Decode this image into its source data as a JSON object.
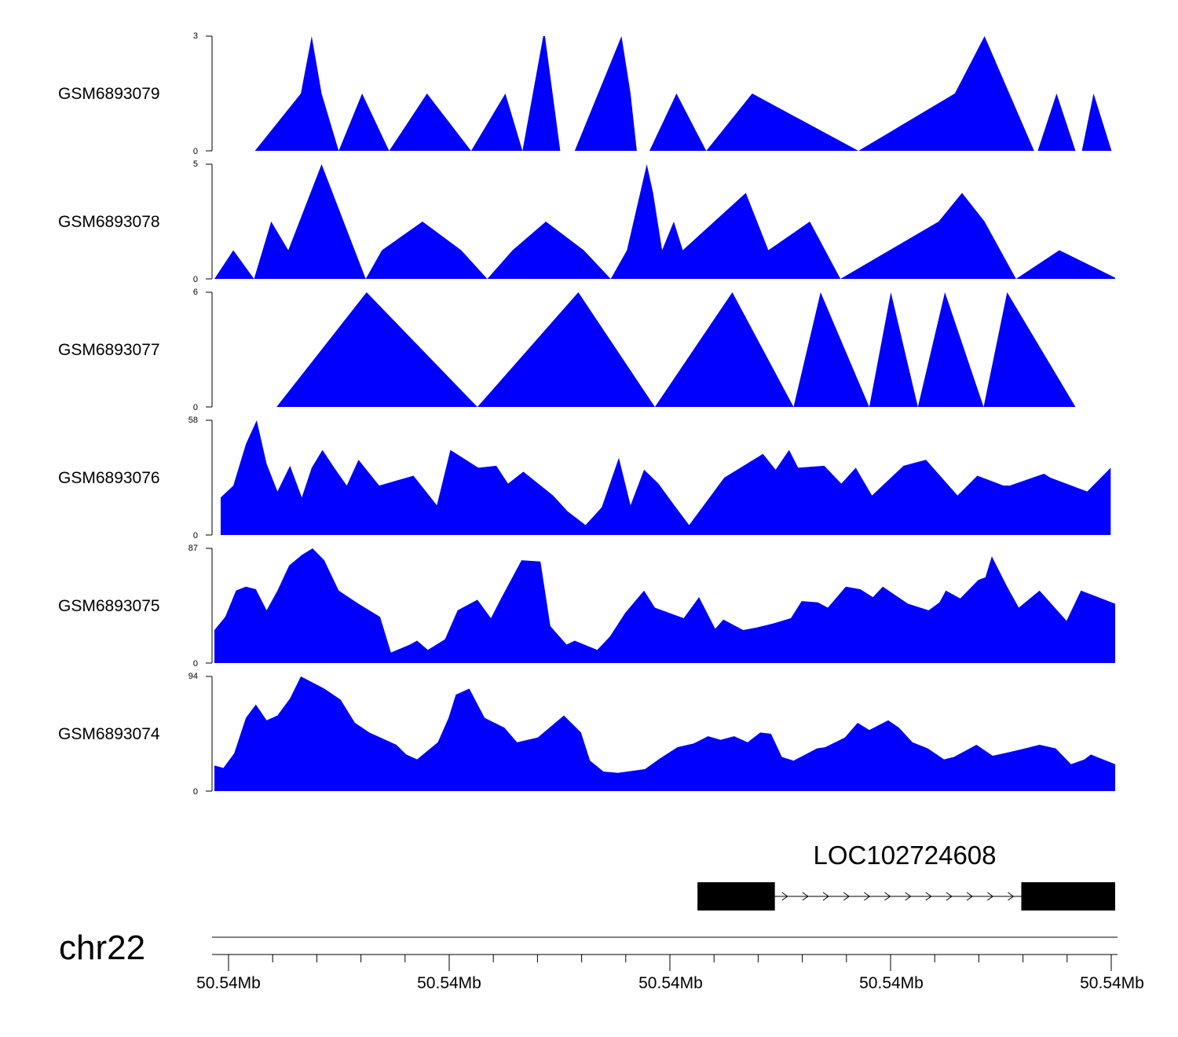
{
  "chart_data": {
    "type": "area",
    "title": "",
    "color": "#0000FF",
    "chromosome": "chr22",
    "gene": {
      "name": "LOC102724608",
      "exons": [
        [
          0.5363,
          0.6222
        ],
        [
          0.8958,
          1.0
        ]
      ],
      "strand": "+"
    },
    "x_tick_labels": [
      "50.54Mb",
      "50.54Mb",
      "50.54Mb",
      "50.54Mb",
      "50.54Mb"
    ],
    "tracks": [
      {
        "name": "GSM6893079",
        "ylim": [
          0,
          3
        ],
        "y_tick_labels": [
          "0",
          "3"
        ],
        "x": [
          0.045,
          0.096,
          0.108,
          0.119,
          0.138,
          0.164,
          0.194,
          0.236,
          0.285,
          0.323,
          0.342,
          0.365,
          0.367,
          0.384,
          0.391,
          0.4,
          0.452,
          0.462,
          0.469,
          0.483,
          0.513,
          0.546,
          0.597,
          0.715,
          0.822,
          0.855,
          0.91,
          0.914,
          0.935,
          0.956,
          0.963,
          0.976,
          0.996
        ],
        "y": [
          0,
          1.5,
          3,
          1.5,
          0,
          1.5,
          0,
          1.5,
          0,
          1.5,
          0,
          3,
          3,
          0,
          0,
          0,
          3,
          1.5,
          0,
          0,
          1.5,
          0,
          1.5,
          0,
          1.5,
          3,
          0,
          0,
          1.5,
          0,
          0,
          1.5,
          0
        ]
      },
      {
        "name": "GSM6893078",
        "ylim": [
          0,
          5
        ],
        "y_tick_labels": [
          "0",
          "5"
        ],
        "x": [
          0.0,
          0.021,
          0.044,
          0.063,
          0.082,
          0.119,
          0.168,
          0.186,
          0.231,
          0.274,
          0.303,
          0.331,
          0.368,
          0.41,
          0.44,
          0.458,
          0.48,
          0.487,
          0.497,
          0.51,
          0.52,
          0.59,
          0.615,
          0.661,
          0.695,
          0.804,
          0.83,
          0.855,
          0.89,
          0.938,
          1.0
        ],
        "y": [
          0,
          1.25,
          0,
          2.5,
          1.25,
          5,
          0,
          1.25,
          2.5,
          1.25,
          0,
          1.25,
          2.5,
          1.25,
          0,
          1.25,
          5,
          3.75,
          1.25,
          2.5,
          1.25,
          3.75,
          1.25,
          2.5,
          0,
          2.5,
          3.75,
          2.5,
          0,
          1.25,
          0.05
        ]
      },
      {
        "name": "GSM6893077",
        "ylim": [
          0,
          6
        ],
        "y_tick_labels": [
          "0",
          "6"
        ],
        "x": [
          0.069,
          0.169,
          0.292,
          0.404,
          0.489,
          0.575,
          0.643,
          0.673,
          0.727,
          0.751,
          0.781,
          0.811,
          0.854,
          0.88,
          0.956
        ],
        "y": [
          0,
          6,
          0,
          6,
          0,
          6,
          0,
          6,
          0,
          6,
          0,
          6,
          0,
          6,
          0
        ]
      },
      {
        "name": "GSM6893076",
        "ylim": [
          0,
          58
        ],
        "y_tick_labels": [
          "0",
          "58"
        ],
        "x": [
          0.007,
          0.021,
          0.035,
          0.047,
          0.058,
          0.07,
          0.084,
          0.097,
          0.108,
          0.12,
          0.133,
          0.147,
          0.16,
          0.183,
          0.221,
          0.247,
          0.262,
          0.293,
          0.313,
          0.326,
          0.343,
          0.376,
          0.392,
          0.412,
          0.43,
          0.449,
          0.462,
          0.477,
          0.493,
          0.509,
          0.527,
          0.566,
          0.609,
          0.623,
          0.638,
          0.648,
          0.677,
          0.696,
          0.712,
          0.73,
          0.765,
          0.79,
          0.825,
          0.847,
          0.876,
          0.883,
          0.921,
          0.928,
          0.969,
          0.995
        ],
        "y": [
          19,
          25,
          46,
          58,
          36,
          22,
          35,
          19,
          34,
          43,
          34,
          25,
          38,
          25,
          30,
          15,
          43,
          34,
          35,
          26,
          32,
          20,
          12,
          5,
          14,
          39,
          15,
          33,
          26,
          16,
          5,
          29,
          41,
          33,
          43,
          34,
          35,
          26,
          34,
          20,
          35,
          38,
          20,
          30,
          25,
          25,
          31,
          29,
          22,
          34
        ]
      },
      {
        "name": "GSM6893075",
        "ylim": [
          0,
          87
        ],
        "y_tick_labels": [
          "0",
          "87"
        ],
        "x": [
          0.0,
          0.012,
          0.024,
          0.035,
          0.046,
          0.058,
          0.07,
          0.083,
          0.097,
          0.109,
          0.122,
          0.138,
          0.16,
          0.184,
          0.196,
          0.217,
          0.225,
          0.237,
          0.256,
          0.27,
          0.292,
          0.307,
          0.319,
          0.341,
          0.362,
          0.373,
          0.391,
          0.4,
          0.425,
          0.439,
          0.456,
          0.477,
          0.489,
          0.521,
          0.538,
          0.556,
          0.565,
          0.587,
          0.602,
          0.62,
          0.64,
          0.652,
          0.67,
          0.681,
          0.701,
          0.717,
          0.731,
          0.742,
          0.77,
          0.793,
          0.805,
          0.812,
          0.828,
          0.848,
          0.856,
          0.863,
          0.88,
          0.893,
          0.916,
          0.946,
          0.962,
          1.0
        ],
        "y": [
          25,
          35,
          55,
          58,
          56,
          40,
          55,
          74,
          82,
          87,
          78,
          55,
          45,
          35,
          8,
          14,
          17,
          10,
          18,
          40,
          48,
          34,
          50,
          78,
          77,
          28,
          14,
          17,
          10,
          20,
          38,
          55,
          42,
          34,
          50,
          26,
          33,
          25,
          27,
          30,
          34,
          47,
          46,
          42,
          58,
          56,
          50,
          58,
          45,
          40,
          46,
          55,
          49,
          63,
          65,
          81,
          58,
          42,
          55,
          32,
          55,
          45
        ]
      },
      {
        "name": "GSM6893074",
        "ylim": [
          0,
          94
        ],
        "y_tick_labels": [
          "0",
          "94"
        ],
        "x": [
          0.0,
          0.01,
          0.022,
          0.035,
          0.046,
          0.058,
          0.07,
          0.084,
          0.096,
          0.109,
          0.122,
          0.14,
          0.156,
          0.172,
          0.19,
          0.202,
          0.213,
          0.225,
          0.248,
          0.26,
          0.268,
          0.283,
          0.3,
          0.322,
          0.336,
          0.359,
          0.388,
          0.407,
          0.417,
          0.432,
          0.448,
          0.478,
          0.495,
          0.514,
          0.532,
          0.548,
          0.562,
          0.577,
          0.592,
          0.606,
          0.618,
          0.63,
          0.643,
          0.669,
          0.678,
          0.7,
          0.714,
          0.727,
          0.748,
          0.76,
          0.775,
          0.792,
          0.81,
          0.821,
          0.846,
          0.864,
          0.883,
          0.9,
          0.916,
          0.934,
          0.951,
          0.966,
          0.973,
          1.0
        ],
        "y": [
          21,
          19,
          31,
          60,
          71,
          58,
          62,
          76,
          94,
          89,
          84,
          75,
          56,
          48,
          42,
          38,
          30,
          26,
          40,
          60,
          79,
          84,
          60,
          52,
          40,
          44,
          62,
          48,
          25,
          16,
          15,
          18,
          27,
          36,
          39,
          45,
          42,
          45,
          40,
          48,
          47,
          28,
          25,
          35,
          36,
          44,
          56,
          50,
          58,
          52,
          40,
          35,
          26,
          28,
          38,
          29,
          32,
          35,
          38,
          35,
          22,
          26,
          30,
          22
        ]
      }
    ]
  }
}
